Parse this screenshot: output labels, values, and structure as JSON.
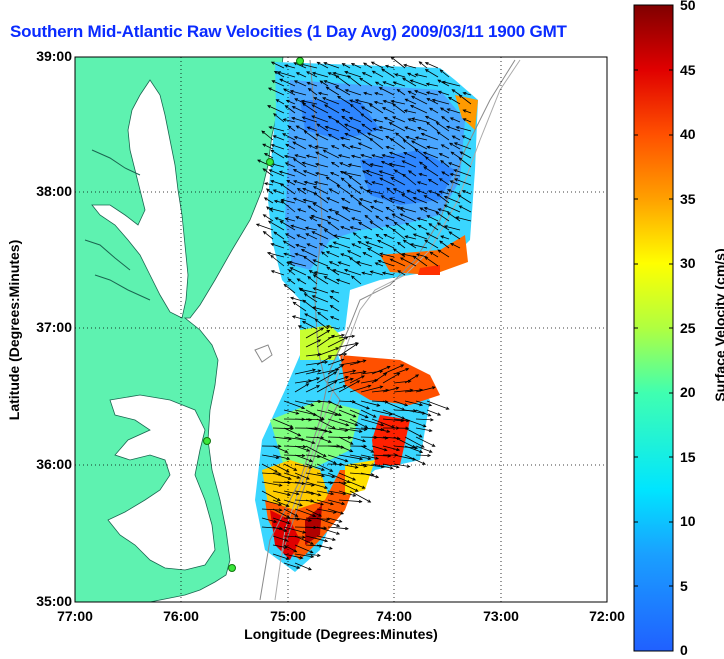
{
  "title": "Southern Mid-Atlantic Raw Velocities (1 Day Avg) 2009/03/11 1900 GMT",
  "x_axis": {
    "label": "Longitude (Degrees:Minutes)",
    "ticks": [
      "77:00",
      "76:00",
      "75:00",
      "74:00",
      "73:00",
      "72:00"
    ]
  },
  "y_axis": {
    "label": "Latitude (Degrees:Minutes)",
    "ticks": [
      "39:00",
      "38:00",
      "37:00",
      "36:00",
      "35:00"
    ]
  },
  "colorbar": {
    "label": "Surface Velocity (cm/s)",
    "ticks": [
      "50",
      "45",
      "40",
      "35",
      "30",
      "25",
      "20",
      "15",
      "10",
      "5",
      "0"
    ],
    "min": 0,
    "max": 50
  },
  "colors": {
    "land": "#5ef2b0",
    "title": "#0a2bff",
    "low": "#1a5bff",
    "high": "#8b0000"
  }
}
